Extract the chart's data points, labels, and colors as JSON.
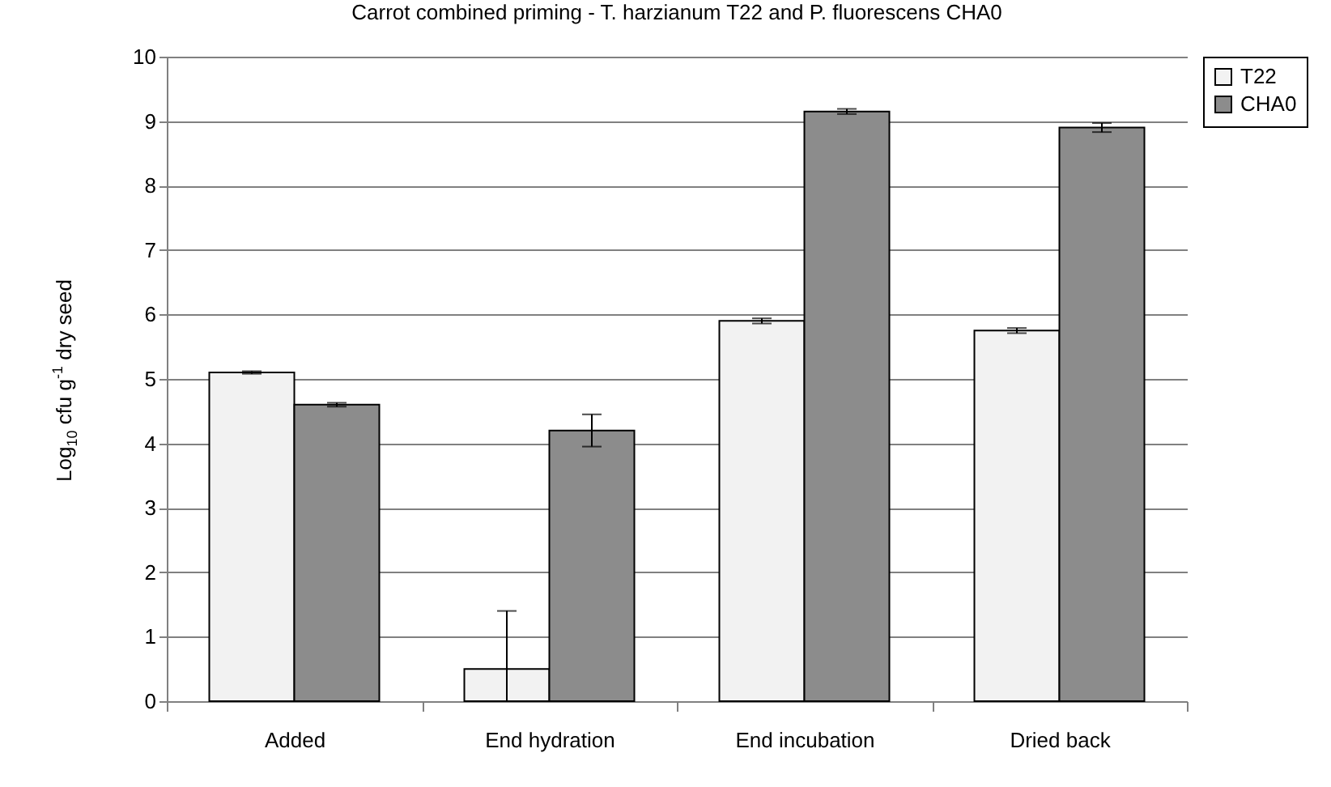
{
  "chart_data": {
    "type": "bar",
    "title": "Carrot combined priming - T. harzianum T22 and P. fluorescens CHA0",
    "ylabel": "Log$_{10}$ cfu g$^{-1}$ dry seed",
    "categories": [
      "Added",
      "End hydration",
      "End incubation",
      "Dried back"
    ],
    "series": [
      {
        "name": "T22",
        "color": "#f2f2f2",
        "values": [
          5.1,
          0.5,
          5.9,
          5.75
        ],
        "errors": [
          0.02,
          [
            0,
            1.4
          ],
          0.04,
          0.04
        ]
      },
      {
        "name": "CHA0",
        "color": "#8c8c8c",
        "values": [
          4.6,
          4.2,
          9.15,
          8.9
        ],
        "errors": [
          0.03,
          0.25,
          0.04,
          0.07
        ]
      }
    ],
    "ylim": [
      0,
      10
    ],
    "yticks": [
      0,
      1,
      2,
      3,
      4,
      5,
      6,
      7,
      8,
      9,
      10
    ],
    "grid": "y",
    "legend": "right"
  }
}
